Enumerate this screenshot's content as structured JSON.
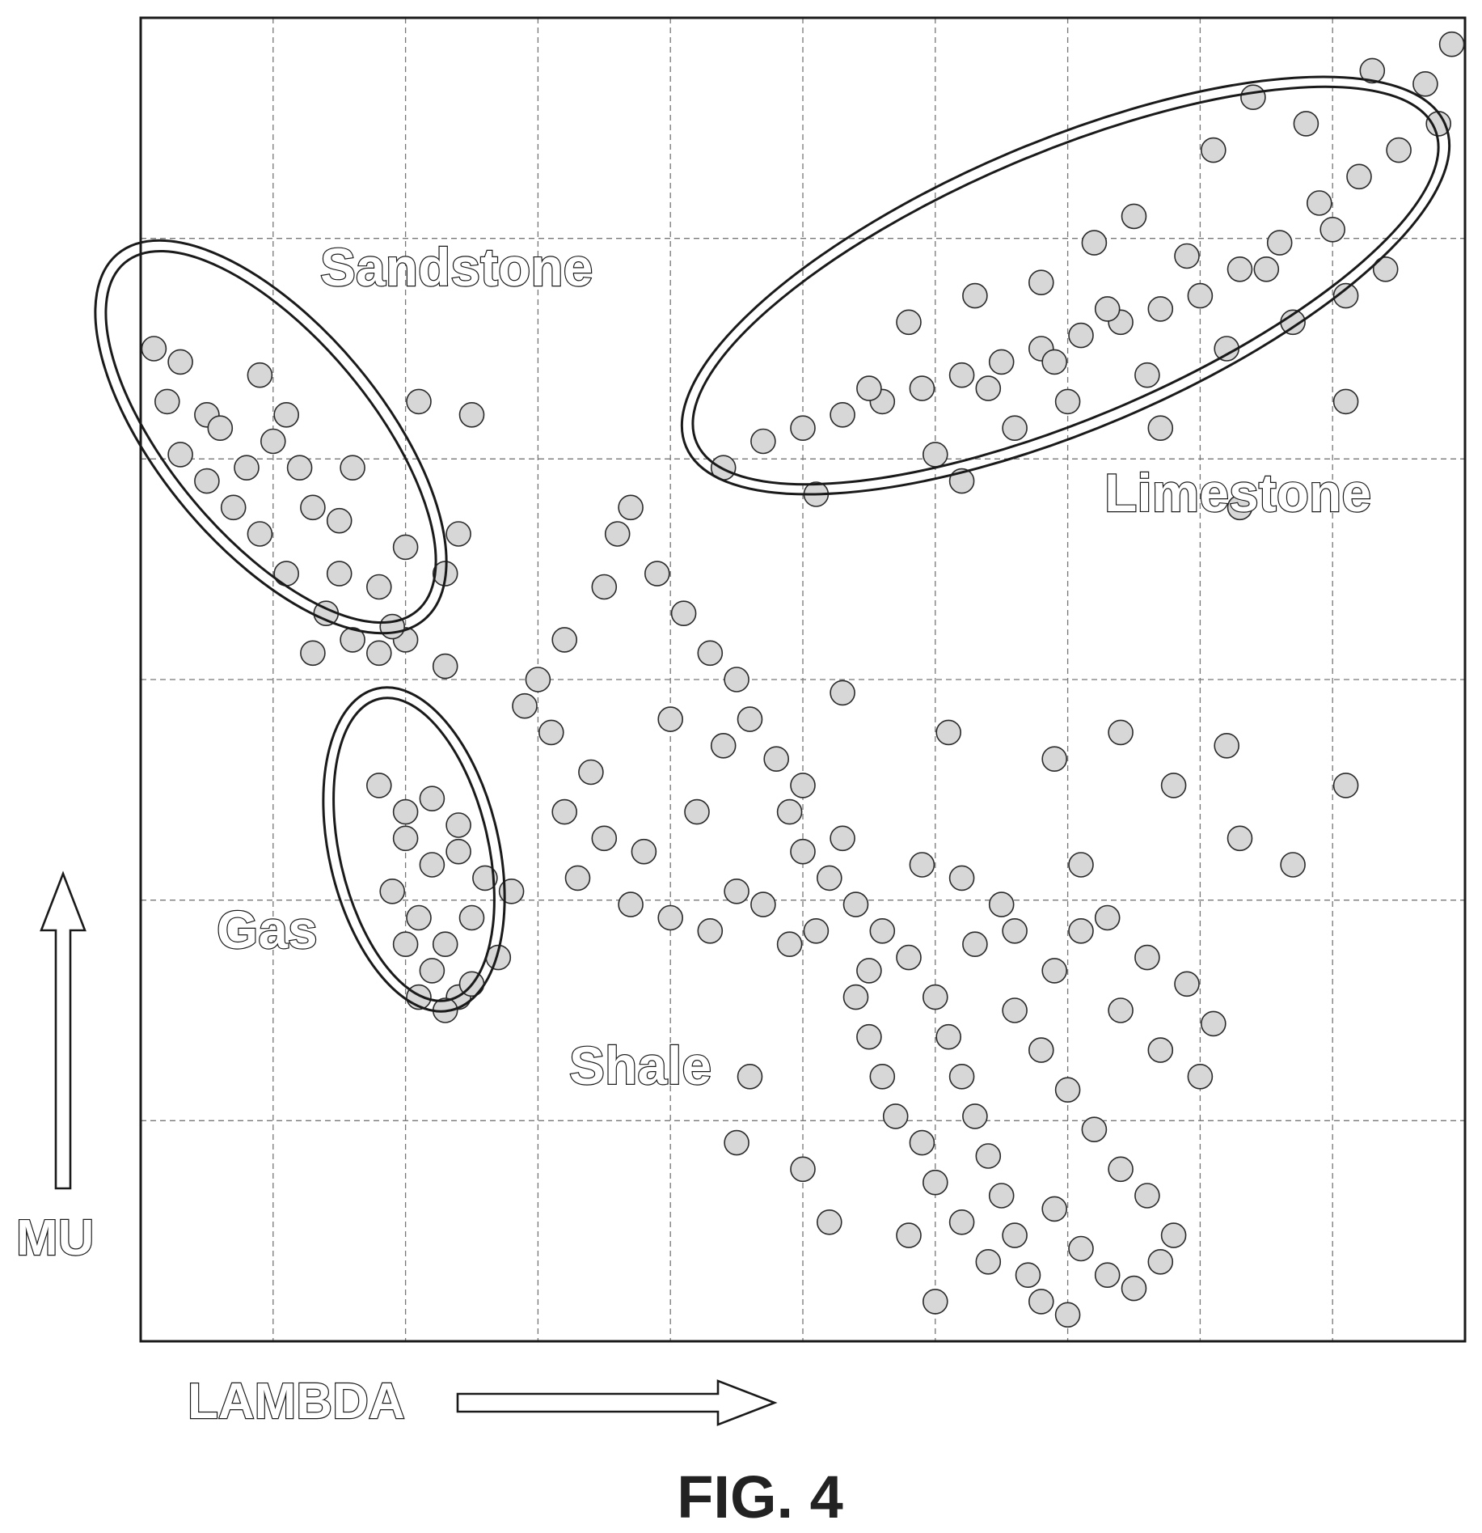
{
  "figure_label": "FIG. 4",
  "axes": {
    "xlabel": "LAMBDA",
    "ylabel": "MU"
  },
  "cluster_labels": {
    "sandstone": "Sandstone",
    "limestone": "Limestone",
    "gas": "Gas",
    "shale": "Shale"
  },
  "chart_data": {
    "type": "scatter",
    "title": "",
    "xlabel": "LAMBDA",
    "ylabel": "MU",
    "xlim": [
      0,
      10
    ],
    "ylim": [
      0,
      10
    ],
    "grid": true,
    "x_ticks_count": 9,
    "y_ticks_count": 5,
    "tick_labels_shown": false,
    "annotations": [
      "Sandstone",
      "Limestone",
      "Gas",
      "Shale"
    ],
    "series": [
      {
        "cluster": "Sandstone",
        "points": [
          [
            0.1,
            7.5
          ],
          [
            0.3,
            7.4
          ],
          [
            0.5,
            7.0
          ],
          [
            0.9,
            7.3
          ],
          [
            1.1,
            7.0
          ],
          [
            0.2,
            7.1
          ],
          [
            0.3,
            6.7
          ],
          [
            0.5,
            6.5
          ],
          [
            0.7,
            6.3
          ],
          [
            0.9,
            6.1
          ],
          [
            1.0,
            6.8
          ],
          [
            1.2,
            6.6
          ],
          [
            1.3,
            6.3
          ],
          [
            1.1,
            5.8
          ],
          [
            1.4,
            5.5
          ],
          [
            1.6,
            5.3
          ],
          [
            1.8,
            5.2
          ],
          [
            2.0,
            5.3
          ],
          [
            1.5,
            5.8
          ],
          [
            1.8,
            5.7
          ],
          [
            1.6,
            6.6
          ],
          [
            2.1,
            7.1
          ],
          [
            2.5,
            7.0
          ],
          [
            2.4,
            6.1
          ],
          [
            1.3,
            5.2
          ],
          [
            1.9,
            5.4
          ],
          [
            2.3,
            5.8
          ],
          [
            0.6,
            6.9
          ],
          [
            0.8,
            6.6
          ],
          [
            1.5,
            6.2
          ]
        ]
      },
      {
        "cluster": "Limestone",
        "points": [
          [
            4.4,
            6.6
          ],
          [
            4.7,
            6.8
          ],
          [
            5.0,
            6.9
          ],
          [
            5.3,
            7.0
          ],
          [
            5.6,
            7.1
          ],
          [
            5.9,
            7.2
          ],
          [
            6.2,
            7.3
          ],
          [
            6.5,
            7.4
          ],
          [
            6.8,
            7.5
          ],
          [
            7.1,
            7.6
          ],
          [
            7.4,
            7.7
          ],
          [
            7.7,
            7.8
          ],
          [
            8.0,
            7.9
          ],
          [
            8.3,
            8.1
          ],
          [
            8.6,
            8.3
          ],
          [
            8.9,
            8.6
          ],
          [
            9.2,
            8.8
          ],
          [
            9.5,
            9.0
          ],
          [
            9.7,
            9.5
          ],
          [
            9.9,
            9.8
          ],
          [
            9.8,
            9.2
          ],
          [
            9.3,
            9.6
          ],
          [
            8.8,
            9.2
          ],
          [
            8.4,
            9.4
          ],
          [
            8.1,
            9.0
          ],
          [
            7.5,
            8.5
          ],
          [
            7.2,
            8.3
          ],
          [
            6.8,
            8.0
          ],
          [
            6.3,
            7.9
          ],
          [
            5.8,
            7.7
          ],
          [
            5.5,
            7.2
          ],
          [
            6.0,
            6.7
          ],
          [
            6.6,
            6.9
          ],
          [
            7.0,
            7.1
          ],
          [
            7.6,
            7.3
          ],
          [
            8.2,
            7.5
          ],
          [
            8.7,
            7.7
          ],
          [
            9.1,
            7.9
          ],
          [
            9.4,
            8.1
          ],
          [
            9.0,
            8.4
          ],
          [
            8.5,
            8.1
          ],
          [
            7.9,
            8.2
          ],
          [
            7.3,
            7.8
          ],
          [
            6.9,
            7.4
          ],
          [
            6.4,
            7.2
          ],
          [
            5.1,
            6.4
          ],
          [
            6.2,
            6.5
          ],
          [
            7.7,
            6.9
          ],
          [
            8.3,
            6.3
          ],
          [
            9.1,
            7.1
          ]
        ]
      },
      {
        "cluster": "Gas",
        "points": [
          [
            1.8,
            4.2
          ],
          [
            2.0,
            4.0
          ],
          [
            2.2,
            4.1
          ],
          [
            2.0,
            3.8
          ],
          [
            2.2,
            3.6
          ],
          [
            2.4,
            3.7
          ],
          [
            1.9,
            3.4
          ],
          [
            2.1,
            3.2
          ],
          [
            2.3,
            3.0
          ],
          [
            2.5,
            3.2
          ],
          [
            2.0,
            3.0
          ],
          [
            2.2,
            2.8
          ],
          [
            2.4,
            2.6
          ],
          [
            2.1,
            2.6
          ],
          [
            2.3,
            2.5
          ],
          [
            2.5,
            2.7
          ],
          [
            2.7,
            2.9
          ],
          [
            2.6,
            3.5
          ],
          [
            2.4,
            3.9
          ]
        ]
      },
      {
        "cluster": "Shale",
        "points": [
          [
            2.9,
            4.8
          ],
          [
            2.3,
            5.1
          ],
          [
            3.0,
            5.0
          ],
          [
            3.2,
            5.3
          ],
          [
            3.1,
            4.6
          ],
          [
            3.5,
            5.7
          ],
          [
            3.6,
            6.1
          ],
          [
            3.7,
            6.3
          ],
          [
            3.9,
            5.8
          ],
          [
            4.1,
            5.5
          ],
          [
            4.3,
            5.2
          ],
          [
            4.5,
            5.0
          ],
          [
            4.6,
            4.7
          ],
          [
            4.8,
            4.4
          ],
          [
            4.9,
            4.0
          ],
          [
            5.0,
            3.7
          ],
          [
            5.2,
            3.5
          ],
          [
            5.4,
            3.3
          ],
          [
            5.6,
            3.1
          ],
          [
            5.8,
            2.9
          ],
          [
            6.0,
            2.6
          ],
          [
            6.1,
            2.3
          ],
          [
            6.2,
            2.0
          ],
          [
            6.3,
            1.7
          ],
          [
            6.4,
            1.4
          ],
          [
            6.5,
            1.1
          ],
          [
            6.6,
            0.8
          ],
          [
            6.7,
            0.5
          ],
          [
            6.8,
            0.3
          ],
          [
            7.0,
            0.2
          ],
          [
            5.4,
            2.6
          ],
          [
            5.5,
            2.3
          ],
          [
            5.6,
            2.0
          ],
          [
            5.7,
            1.7
          ],
          [
            5.9,
            1.5
          ],
          [
            6.0,
            1.2
          ],
          [
            6.2,
            0.9
          ],
          [
            6.4,
            0.6
          ],
          [
            6.0,
            0.3
          ],
          [
            5.8,
            0.8
          ],
          [
            6.9,
            1.0
          ],
          [
            7.1,
            0.7
          ],
          [
            7.3,
            0.5
          ],
          [
            7.5,
            0.4
          ],
          [
            7.7,
            0.6
          ],
          [
            7.8,
            0.8
          ],
          [
            7.6,
            1.1
          ],
          [
            7.4,
            1.3
          ],
          [
            7.2,
            1.6
          ],
          [
            7.0,
            1.9
          ],
          [
            6.8,
            2.2
          ],
          [
            6.6,
            2.5
          ],
          [
            6.9,
            2.8
          ],
          [
            7.1,
            3.1
          ],
          [
            6.5,
            3.3
          ],
          [
            6.2,
            3.5
          ],
          [
            5.9,
            3.6
          ],
          [
            5.3,
            3.8
          ],
          [
            5.0,
            4.2
          ],
          [
            4.4,
            4.5
          ],
          [
            4.2,
            4.0
          ],
          [
            3.8,
            3.7
          ],
          [
            3.5,
            3.8
          ],
          [
            3.3,
            3.5
          ],
          [
            3.7,
            3.3
          ],
          [
            4.0,
            3.2
          ],
          [
            4.3,
            3.1
          ],
          [
            4.5,
            3.4
          ],
          [
            4.7,
            3.3
          ],
          [
            4.9,
            3.0
          ],
          [
            5.1,
            3.1
          ],
          [
            5.5,
            2.8
          ],
          [
            6.3,
            3.0
          ],
          [
            6.6,
            3.1
          ],
          [
            7.3,
            3.2
          ],
          [
            7.6,
            2.9
          ],
          [
            7.9,
            2.7
          ],
          [
            8.1,
            2.4
          ],
          [
            8.0,
            2.0
          ],
          [
            7.7,
            2.2
          ],
          [
            7.4,
            2.5
          ],
          [
            3.2,
            4.0
          ],
          [
            3.4,
            4.3
          ],
          [
            2.8,
            3.4
          ],
          [
            2.0,
            6.0
          ],
          [
            4.6,
            2.0
          ],
          [
            5.0,
            1.3
          ],
          [
            5.2,
            0.9
          ],
          [
            4.5,
            1.5
          ],
          [
            4.0,
            4.7
          ],
          [
            5.3,
            4.9
          ],
          [
            6.1,
            4.6
          ],
          [
            6.9,
            4.4
          ],
          [
            7.4,
            4.6
          ],
          [
            7.8,
            4.2
          ],
          [
            8.2,
            4.5
          ],
          [
            8.7,
            3.6
          ],
          [
            8.3,
            3.8
          ],
          [
            9.1,
            4.2
          ],
          [
            7.1,
            3.6
          ]
        ]
      }
    ]
  }
}
